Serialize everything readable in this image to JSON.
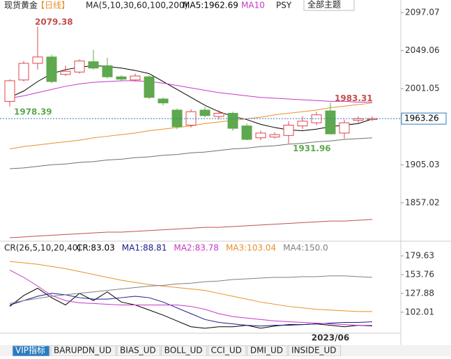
{
  "header": {
    "symbol": "现货黄金",
    "period": "【日线】",
    "ma_params": "MA(5,10,30,60,100,200)",
    "ma5": "MA5:1962.69",
    "ma10": "MA10",
    "psy": "PSY",
    "theme": "全部主题"
  },
  "chart_data": [
    {
      "type": "candlestick",
      "open": [
        1985,
        2012,
        2033,
        2041,
        2019,
        2022,
        2035,
        2030,
        2016,
        2012,
        2016,
        1988,
        1974,
        1955,
        1974,
        1966,
        1970,
        1954,
        1939,
        1940,
        1942,
        1954,
        1958,
        1973,
        1945,
        1961,
        1962
      ],
      "high": [
        2013,
        2036,
        2079.38,
        2044,
        2030,
        2038,
        2050,
        2040,
        2018,
        2020,
        2018,
        1990,
        1976,
        1975,
        1978,
        1974,
        1972,
        1957,
        1948,
        1946,
        1960,
        1966,
        1972,
        1983.31,
        1962,
        1966,
        1966
      ],
      "low": [
        1978.39,
        2010,
        2025,
        2008,
        2017,
        2020,
        2025,
        2014,
        2010,
        2010,
        1988,
        1980,
        1950,
        1952,
        1965,
        1962,
        1948,
        1936,
        1936,
        1938,
        1931.96,
        1950,
        1955,
        1943,
        1938,
        1958,
        1960
      ],
      "close": [
        2011,
        2033,
        2041,
        2010,
        2023,
        2036,
        2027,
        2016,
        2013,
        2017,
        1990,
        1983,
        1953,
        1972,
        1967,
        1970,
        1951,
        1937,
        1945,
        1943,
        1955,
        1960,
        1968,
        1944,
        1958,
        1963,
        1963.26
      ],
      "up_color": "#e0464a",
      "down_color": "#5ea84e",
      "series": [
        {
          "name": "MA5",
          "color": "#000000",
          "values": [
            1990,
            1998,
            2010,
            2020,
            2025,
            2028,
            2030,
            2029,
            2027,
            2024,
            2020,
            2010,
            2000,
            1990,
            1980,
            1972,
            1966,
            1962,
            1956,
            1952,
            1949,
            1948,
            1950,
            1953,
            1955,
            1957,
            1962.69
          ]
        },
        {
          "name": "MA10",
          "color": "#c837c8",
          "values": [
            1989,
            1992,
            1996,
            2000,
            2004,
            2007,
            2009,
            2010,
            2011,
            2011,
            2010,
            2008,
            2005,
            2002,
            1999,
            1996,
            1994,
            1992,
            1990,
            1989,
            1988,
            1987,
            1986,
            1985,
            1985,
            1984,
            1984
          ]
        },
        {
          "color": "#e8902a",
          "values": [
            1925,
            1928,
            1930,
            1932,
            1934,
            1936,
            1939,
            1941,
            1943,
            1945,
            1948,
            1950,
            1952,
            1954,
            1957,
            1959,
            1961,
            1963,
            1965,
            1968,
            1970,
            1972,
            1974,
            1977,
            1979,
            1981,
            1983
          ]
        },
        {
          "color": "#707070",
          "values": [
            1900,
            1901,
            1903,
            1905,
            1906,
            1908,
            1909,
            1911,
            1912,
            1914,
            1915,
            1917,
            1918,
            1920,
            1921,
            1923,
            1925,
            1926,
            1928,
            1929,
            1931,
            1932,
            1934,
            1935,
            1937,
            1938,
            1939
          ]
        },
        {
          "color": "#c0504d",
          "values": [
            1813,
            1814,
            1815,
            1816,
            1817,
            1818,
            1819,
            1820,
            1820,
            1821,
            1822,
            1823,
            1824,
            1825,
            1826,
            1826,
            1827,
            1828,
            1829,
            1830,
            1831,
            1832,
            1833,
            1834,
            1834,
            1835,
            1836
          ]
        }
      ],
      "ylim": [
        1820,
        2097.07
      ],
      "yticks": [
        2097.07,
        2049.06,
        2001.05,
        1905.03,
        1857.02
      ],
      "last_price": 1963.26,
      "annotations": [
        {
          "text": "2079.38",
          "index": 2,
          "value": 2079.38
        },
        {
          "text": "1978.39",
          "index": 0,
          "value": 1978.39
        },
        {
          "text": "1983.31",
          "index": 23,
          "value": 1983.31
        },
        {
          "text": "1931.96",
          "index": 20,
          "value": 1931.96
        }
      ],
      "x_label": "2023/06"
    },
    {
      "type": "line",
      "title": "CR(26,5,10,20,40)",
      "series": [
        {
          "name": "CR:83.03",
          "color": "#000000",
          "values": [
            110,
            125,
            135,
            122,
            112,
            128,
            118,
            130,
            116,
            112,
            105,
            98,
            90,
            82,
            80,
            82,
            82,
            84,
            80,
            83,
            85,
            85,
            86,
            84,
            82,
            84,
            83.03
          ]
        },
        {
          "name": "MA1:88.81",
          "color": "#1a1a8a",
          "values": [
            112,
            118,
            124,
            128,
            126,
            122,
            120,
            120,
            122,
            124,
            122,
            116,
            108,
            100,
            92,
            88,
            86,
            84,
            83,
            84,
            84,
            85,
            86,
            87,
            88,
            88,
            88.81
          ]
        },
        {
          "name": "MA2:83.78",
          "color": "#c837c8",
          "values": [
            160,
            150,
            138,
            125,
            118,
            115,
            114,
            113,
            112,
            112,
            112,
            112,
            112,
            110,
            106,
            100,
            96,
            94,
            92,
            90,
            89,
            88,
            87,
            86,
            85,
            84,
            83.78
          ]
        },
        {
          "name": "MA3:103.04",
          "color": "#e8902a",
          "values": [
            172,
            170,
            168,
            165,
            162,
            158,
            154,
            150,
            146,
            143,
            140,
            138,
            136,
            134,
            132,
            128,
            124,
            120,
            116,
            113,
            110,
            108,
            106,
            105,
            104,
            103,
            103.04
          ]
        },
        {
          "name": "MA4:150.0",
          "color": "#808080",
          "values": [
            114,
            118,
            121,
            124,
            126,
            128,
            130,
            132,
            134,
            136,
            138,
            139,
            141,
            142,
            144,
            145,
            147,
            148,
            149,
            150,
            150,
            151,
            151,
            152,
            152,
            151,
            150.0
          ]
        }
      ],
      "ylim": [
        76,
        179.63
      ],
      "yticks": [
        179.63,
        153.76,
        127.88,
        102.01
      ]
    }
  ],
  "tabs": [
    "VIP指标",
    "BARUPDN_UD",
    "BIAS_UD",
    "BOLL_UD",
    "CCI_UD",
    "DMI_UD",
    "INSIDE_UD"
  ]
}
